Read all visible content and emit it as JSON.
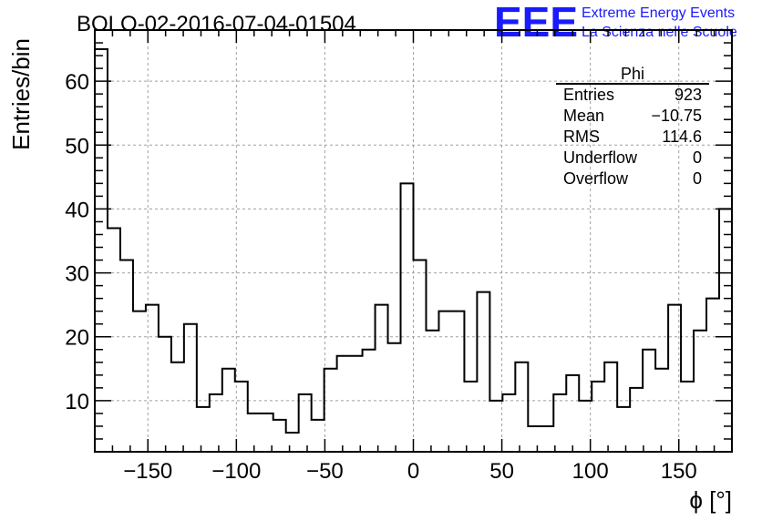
{
  "title": "BOLO-02-2016-07-04-01504",
  "brand": {
    "logo_text": "EEE",
    "line1": "Extreme Energy Events",
    "line2": "La Scienza nelle Scuole",
    "color": "#1a1aff"
  },
  "stats_box": {
    "name": "Phi",
    "rows": [
      {
        "label": "Entries",
        "value": "923"
      },
      {
        "label": "Mean",
        "value": "−10.75"
      },
      {
        "label": "RMS",
        "value": "114.6"
      },
      {
        "label": "Underflow",
        "value": "0"
      },
      {
        "label": "Overflow",
        "value": "0"
      }
    ]
  },
  "chart_data": {
    "type": "bar",
    "style": "step-histogram",
    "title": "BOLO-02-2016-07-04-01504",
    "xlabel": "ϕ [°]",
    "ylabel": "Entries/bin",
    "xlim": [
      -180,
      180
    ],
    "ylim": [
      2,
      68
    ],
    "grid": true,
    "bin_width": 7.2,
    "bin_start": -180,
    "xticks": [
      -150,
      -100,
      -50,
      0,
      50,
      100,
      150
    ],
    "xtick_labels": [
      "−150",
      "−100",
      "−50",
      "0",
      "50",
      "100",
      "150"
    ],
    "yticks": [
      10,
      20,
      30,
      40,
      50,
      60
    ],
    "ytick_labels": [
      "10",
      "20",
      "30",
      "40",
      "50",
      "60"
    ],
    "values": [
      65,
      37,
      32,
      24,
      25,
      20,
      16,
      22,
      9,
      11,
      15,
      13,
      8,
      8,
      7,
      5,
      11,
      7,
      15,
      17,
      17,
      18,
      25,
      19,
      44,
      32,
      21,
      24,
      24,
      13,
      27,
      10,
      11,
      16,
      6,
      6,
      11,
      14,
      10,
      13,
      16,
      9,
      12,
      18,
      15,
      25,
      13,
      21,
      26,
      40
    ],
    "line_color": "#000000"
  }
}
